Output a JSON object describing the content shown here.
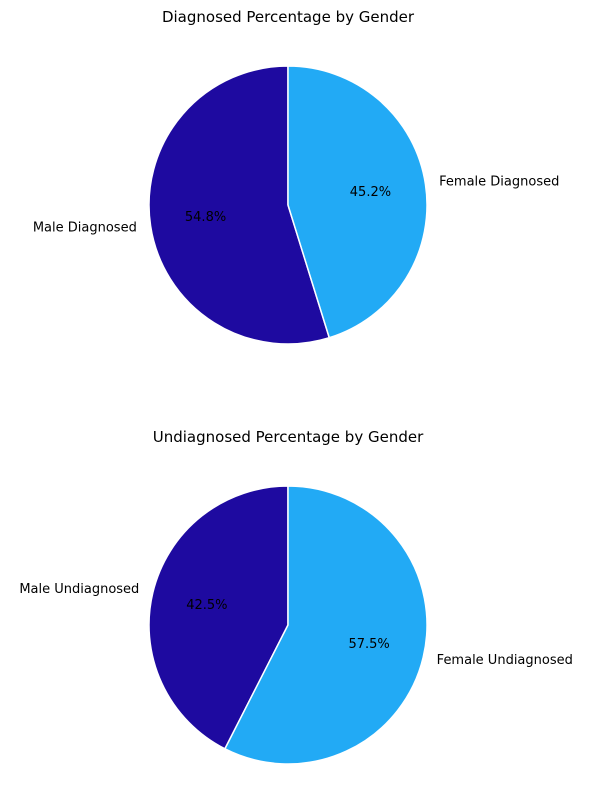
{
  "chart_data": [
    {
      "type": "pie",
      "title": "Diagnosed Percentage by Gender",
      "start_angle_deg": 90,
      "direction": "counterclockwise",
      "slices": [
        {
          "label": "Male Diagnosed",
          "value": 54.8,
          "pct_label": "54.8%",
          "color": "#1e0aa0"
        },
        {
          "label": "Female Diagnosed",
          "value": 45.2,
          "pct_label": "45.2%",
          "color": "#22aaf5"
        }
      ]
    },
    {
      "type": "pie",
      "title": "Undiagnosed Percentage by Gender",
      "start_angle_deg": 90,
      "direction": "counterclockwise",
      "slices": [
        {
          "label": "Male Undiagnosed",
          "value": 42.5,
          "pct_label": "42.5%",
          "color": "#1e0aa0"
        },
        {
          "label": "Female Undiagnosed",
          "value": 57.5,
          "pct_label": "57.5%",
          "color": "#22aaf5"
        }
      ]
    }
  ]
}
